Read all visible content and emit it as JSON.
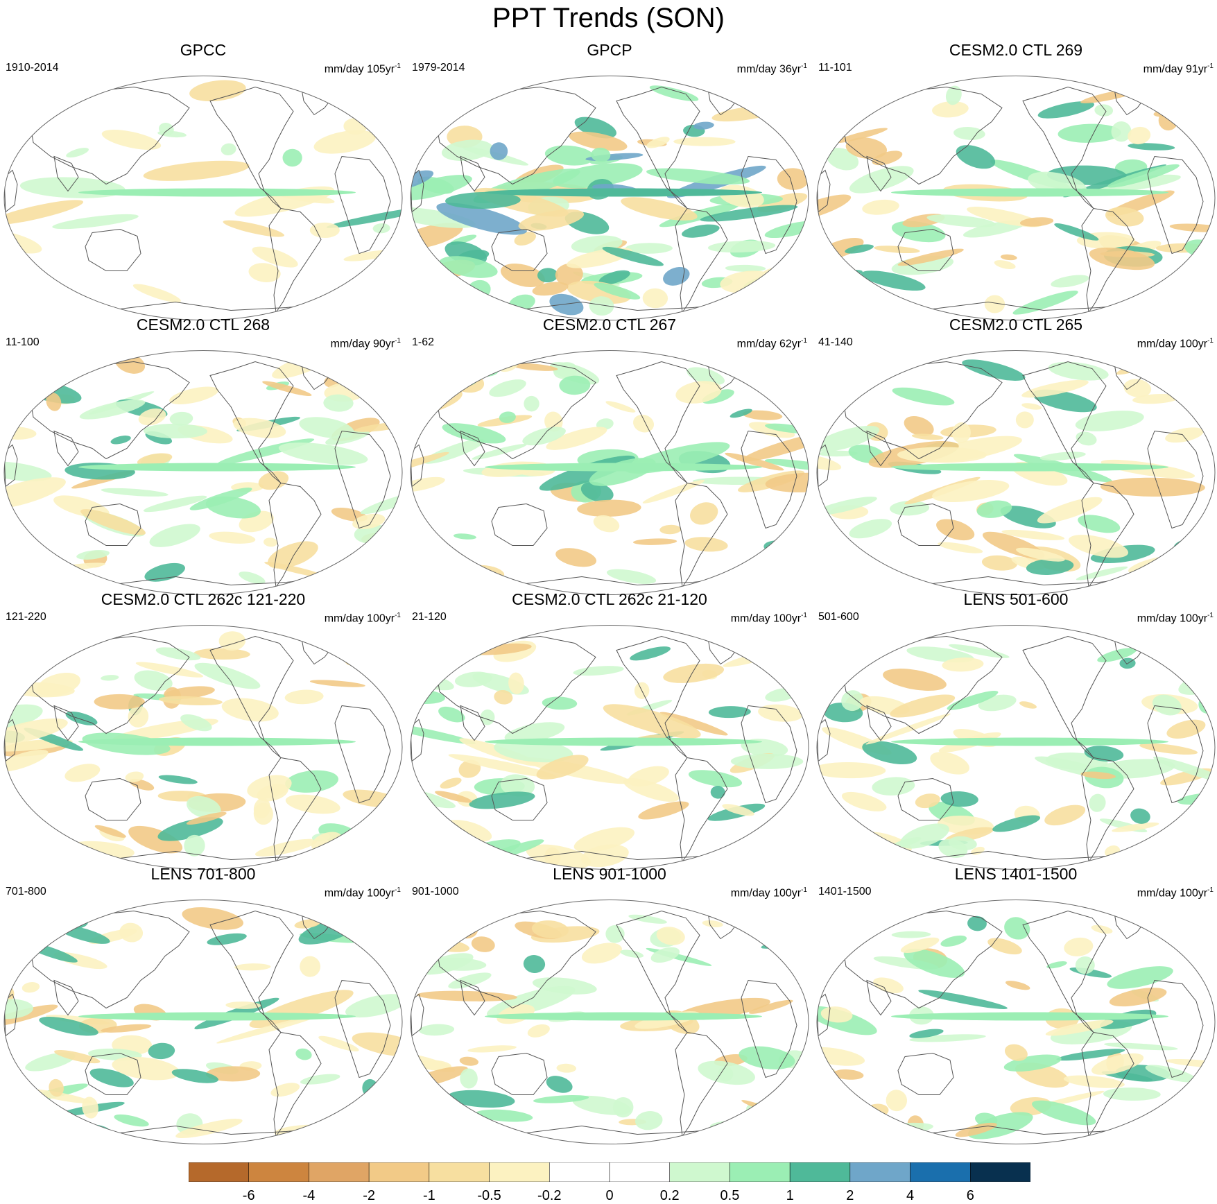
{
  "title": "PPT Trends (SON)",
  "panels": [
    {
      "title": "GPCC",
      "years": "1910-2014",
      "units": "mm/day 105yr",
      "units_exp": "-1"
    },
    {
      "title": "GPCP",
      "years": "1979-2014",
      "units": "mm/day 36yr",
      "units_exp": "-1"
    },
    {
      "title": "CESM2.0 CTL 269",
      "years": "11-101",
      "units": "mm/day 91yr",
      "units_exp": "-1"
    },
    {
      "title": "CESM2.0 CTL 268",
      "years": "11-100",
      "units": "mm/day 90yr",
      "units_exp": "-1"
    },
    {
      "title": "CESM2.0 CTL 267",
      "years": "1-62",
      "units": "mm/day 62yr",
      "units_exp": "-1"
    },
    {
      "title": "CESM2.0 CTL 265",
      "years": "41-140",
      "units": "mm/day 100yr",
      "units_exp": "-1"
    },
    {
      "title": "CESM2.0 CTL 262c 121-220",
      "years": "121-220",
      "units": "mm/day 100yr",
      "units_exp": "-1"
    },
    {
      "title": "CESM2.0 CTL 262c 21-120",
      "years": "21-120",
      "units": "mm/day 100yr",
      "units_exp": "-1"
    },
    {
      "title": "LENS 501-600",
      "years": "501-600",
      "units": "mm/day 100yr",
      "units_exp": "-1"
    },
    {
      "title": "LENS 701-800",
      "years": "701-800",
      "units": "mm/day 100yr",
      "units_exp": "-1"
    },
    {
      "title": "LENS 901-1000",
      "years": "901-1000",
      "units": "mm/day 100yr",
      "units_exp": "-1"
    },
    {
      "title": "LENS 1401-1500",
      "years": "1401-1500",
      "units": "mm/day 100yr",
      "units_exp": "-1"
    }
  ],
  "colorbar": {
    "colors": [
      "#b5692b",
      "#cd853f",
      "#e0a565",
      "#f2ca87",
      "#f7dfa0",
      "#fcf2c1",
      "#ffffff",
      "#ffffff",
      "#cff8cf",
      "#9beeb4",
      "#4fb999",
      "#6fa6c9",
      "#1a6fad",
      "#08304f"
    ],
    "labels": [
      "-6",
      "-4",
      "-2",
      "-1",
      "-0.5",
      "-0.2",
      "0",
      "0.2",
      "0.5",
      "1",
      "2",
      "4",
      "6"
    ]
  }
}
